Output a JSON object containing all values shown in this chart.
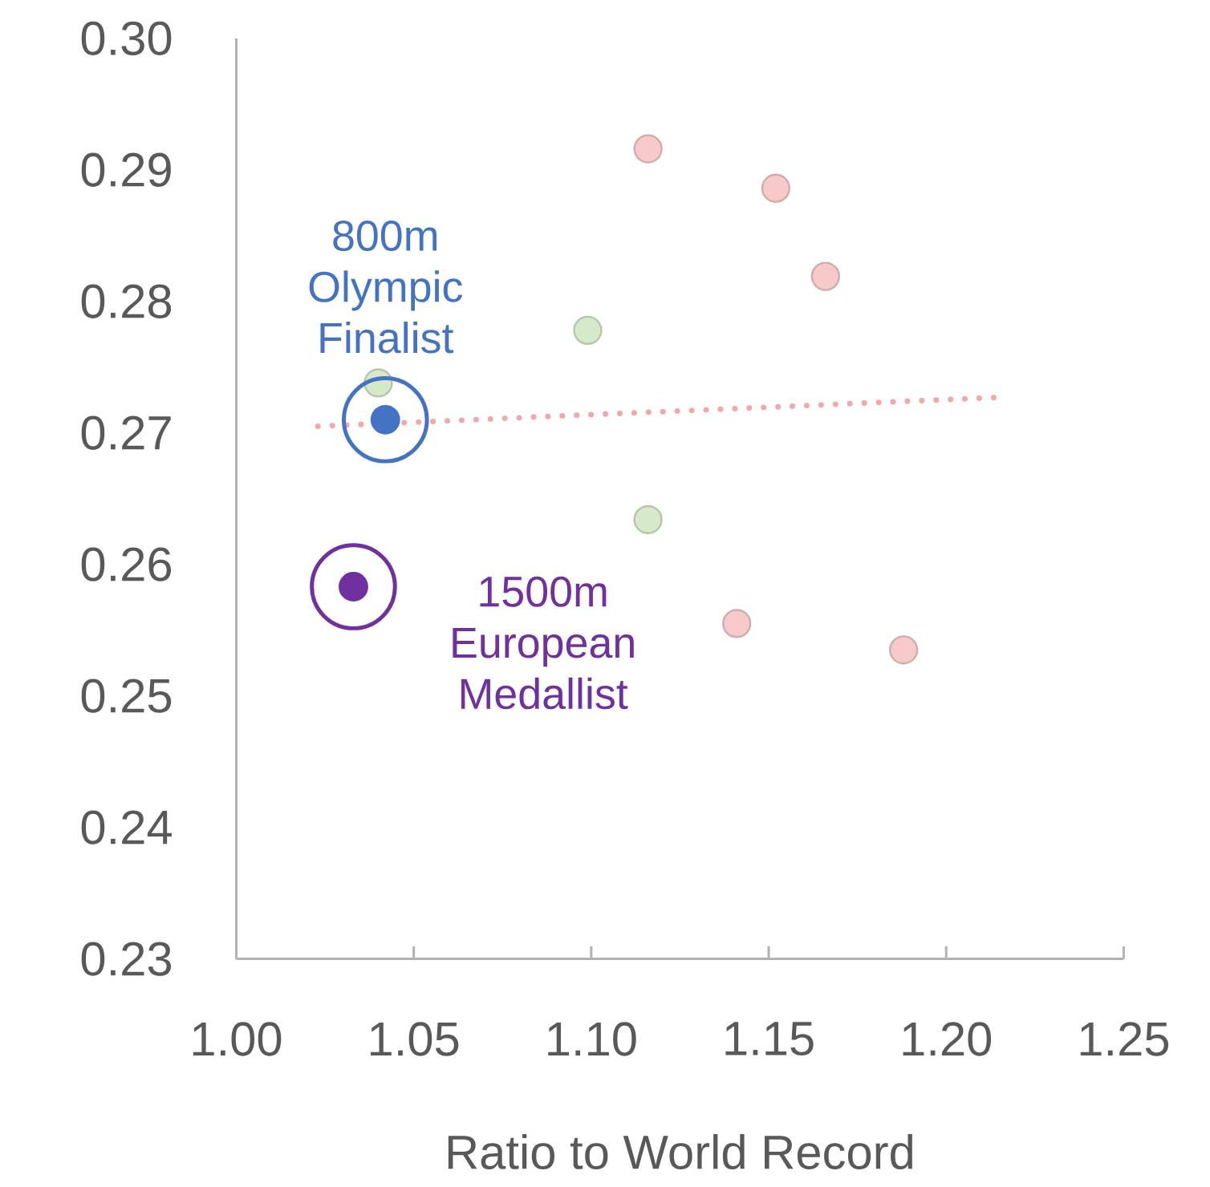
{
  "chart_data": {
    "type": "scatter",
    "xlabel": "Ratio to World Record",
    "xlim": [
      1.0,
      1.25
    ],
    "xticks": [
      {
        "value": 1.0,
        "label": "1.00"
      },
      {
        "value": 1.05,
        "label": "1.05"
      },
      {
        "value": 1.1,
        "label": "1.10"
      },
      {
        "value": 1.15,
        "label": "1.15"
      },
      {
        "value": 1.2,
        "label": "1.20"
      },
      {
        "value": 1.25,
        "label": "1.25"
      }
    ],
    "ylim": [
      0.23,
      0.3
    ],
    "yticks": [
      {
        "value": 0.23,
        "label": "0.23"
      },
      {
        "value": 0.24,
        "label": "0.24"
      },
      {
        "value": 0.25,
        "label": "0.25"
      },
      {
        "value": 0.26,
        "label": "0.26"
      },
      {
        "value": 0.27,
        "label": "0.27"
      },
      {
        "value": 0.28,
        "label": "0.28"
      },
      {
        "value": 0.29,
        "label": "0.29"
      },
      {
        "value": 0.3,
        "label": "0.30"
      }
    ],
    "grid": false,
    "marker": "circle",
    "series": [
      {
        "color": "#f7caca",
        "x": [
          1.116,
          1.152,
          1.166,
          1.141,
          1.188
        ],
        "values": [
          0.2916,
          0.2886,
          0.2819,
          0.2555,
          0.2535
        ]
      },
      {
        "color": "#d6e9c9",
        "x": [
          1.099,
          1.04,
          1.116
        ],
        "values": [
          0.2778,
          0.2738,
          0.2634
        ]
      },
      {
        "type": "line",
        "line_style": "dotted",
        "marker": "none",
        "color": "#f2a8a8",
        "x": [
          1.023,
          1.215
        ],
        "values": [
          0.2705,
          0.2727
        ]
      },
      {
        "color": "#4472c4",
        "x": [
          1.042
        ],
        "values": [
          0.271
        ]
      },
      {
        "color": "#7030a0",
        "x": [
          1.033
        ],
        "values": [
          0.2583
        ]
      }
    ],
    "annotations": [
      {
        "text": "800m Olympic Finalist",
        "x": 1.042,
        "y": 0.271
      },
      {
        "text": "1500m European Medallist",
        "x": 1.033,
        "y": 0.2583
      }
    ]
  }
}
